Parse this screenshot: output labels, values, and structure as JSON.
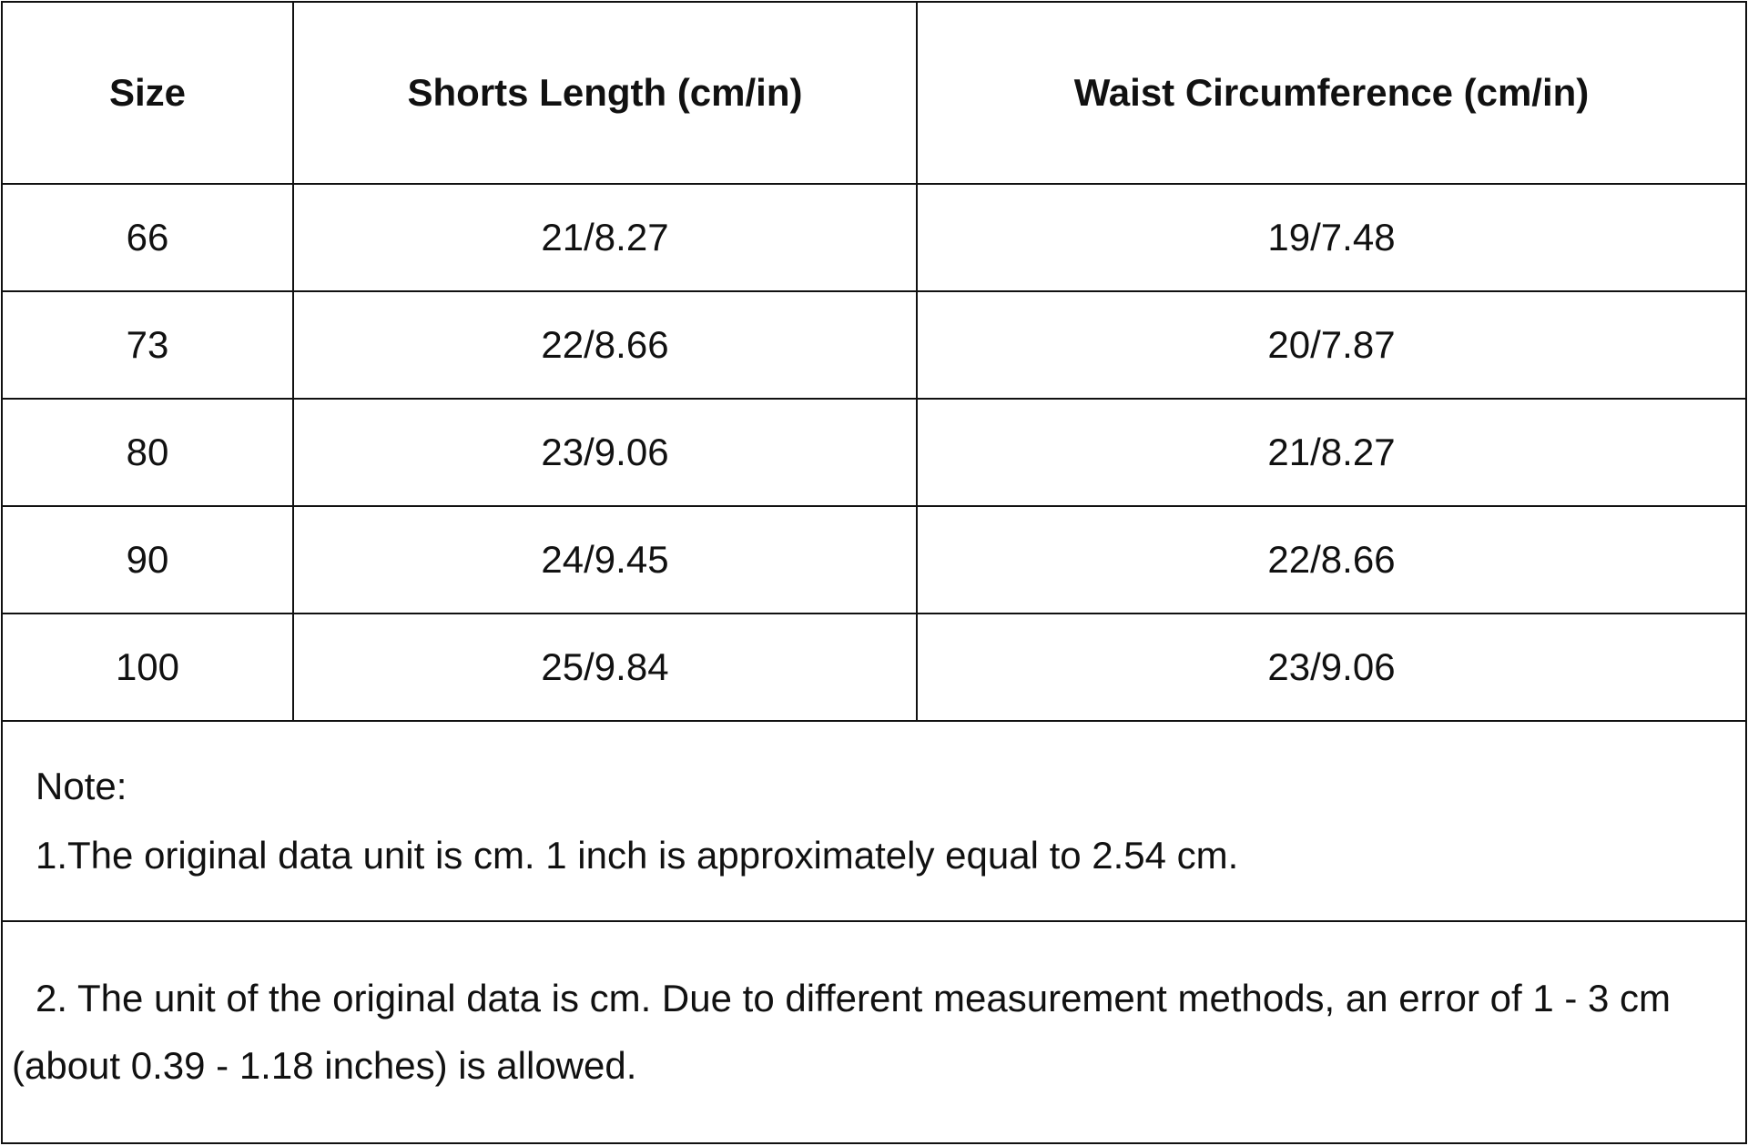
{
  "table": {
    "header": [
      "Size",
      "Shorts Length (cm/in)",
      "Waist Circumference (cm/in)"
    ],
    "rows": [
      [
        "66",
        "21/8.27",
        "19/7.48"
      ],
      [
        "73",
        "22/8.66",
        "20/7.87"
      ],
      [
        "80",
        "23/9.06",
        "21/8.27"
      ],
      [
        "90",
        "24/9.45",
        "22/8.66"
      ],
      [
        "100",
        "25/9.84",
        "23/9.06"
      ]
    ]
  },
  "notes": {
    "title": "Note:",
    "items": [
      "1.The original data unit is cm. 1 inch is approximately equal to 2.54 cm.",
      "2. The unit of the original data is cm. Due to different measurement methods, an error of 1 - 3 cm (about 0.39 - 1.18 inches) is allowed."
    ]
  }
}
